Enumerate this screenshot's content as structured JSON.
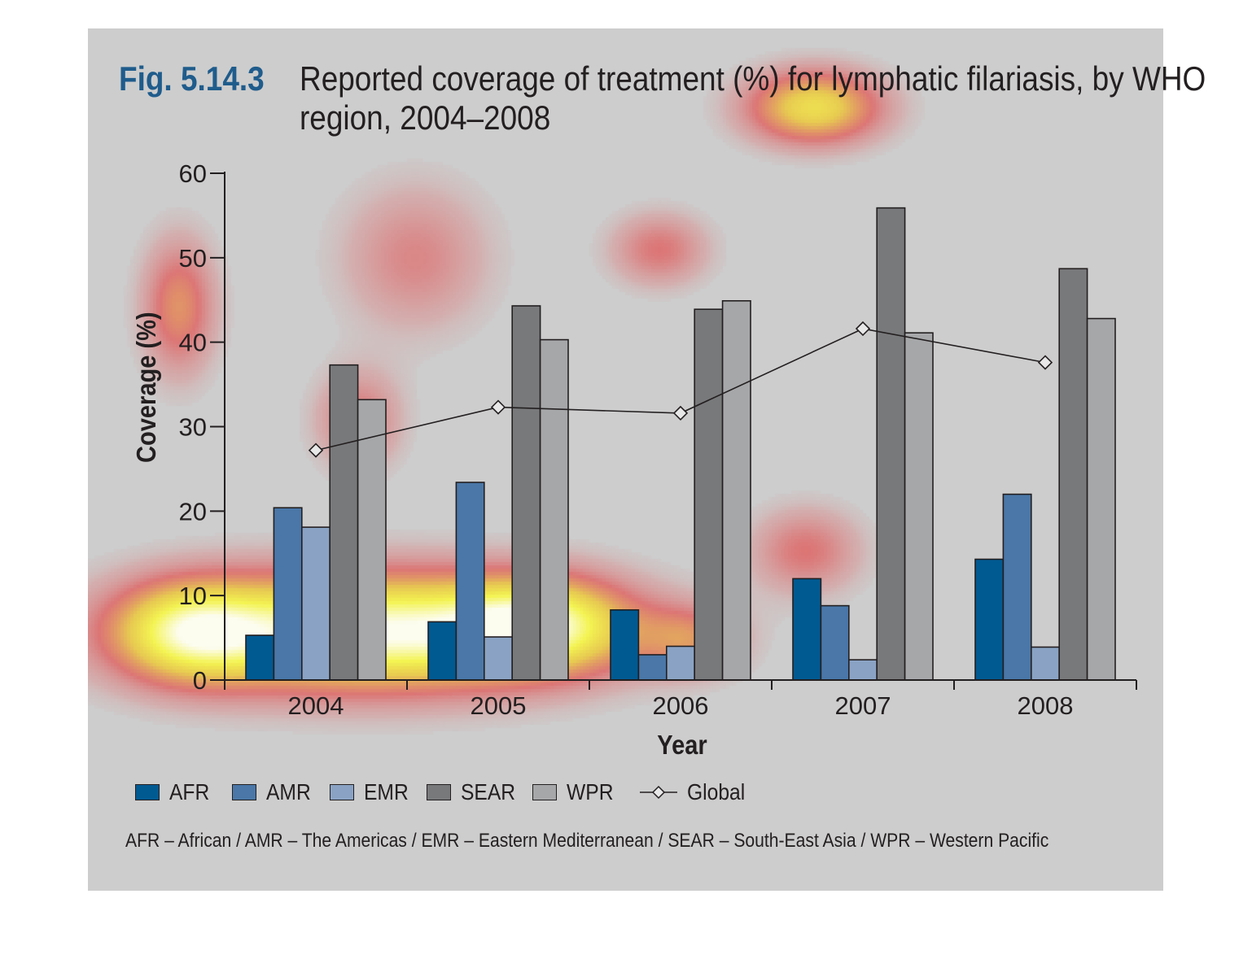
{
  "figure": {
    "number": "Fig. 5.14.3",
    "title": "Reported coverage of treatment (%) for lymphatic filariasis, by WHO region, 2004–2008",
    "footnote": "AFR – African / AMR – The Americas / EMR – Eastern Mediterranean / SEAR – South-East Asia / WPR – Western Pacific"
  },
  "chart_data": {
    "type": "bar",
    "title": "Reported coverage of treatment (%) for lymphatic filariasis, by WHO region, 2004–2008",
    "xlabel": "Year",
    "ylabel": "Coverage (%)",
    "ylim": [
      0,
      60
    ],
    "yticks": [
      0,
      10,
      20,
      30,
      40,
      50,
      60
    ],
    "grid": false,
    "legend_position": "bottom",
    "categories": [
      "2004",
      "2005",
      "2006",
      "2007",
      "2008"
    ],
    "series": [
      {
        "name": "AFR",
        "type": "bar",
        "color": "#005a92",
        "values": [
          5.3,
          6.9,
          8.3,
          12.0,
          14.3
        ]
      },
      {
        "name": "AMR",
        "type": "bar",
        "color": "#4a77a8",
        "values": [
          20.4,
          23.4,
          3.0,
          8.8,
          22.0
        ]
      },
      {
        "name": "EMR",
        "type": "bar",
        "color": "#8aa3c4",
        "values": [
          18.1,
          5.1,
          4.0,
          2.4,
          3.9
        ]
      },
      {
        "name": "SEAR",
        "type": "bar",
        "color": "#78797b",
        "values": [
          37.3,
          44.3,
          43.9,
          55.9,
          48.7
        ]
      },
      {
        "name": "WPR",
        "type": "bar",
        "color": "#a6a7a9",
        "values": [
          33.2,
          40.3,
          44.9,
          41.1,
          42.8
        ]
      },
      {
        "name": "Global",
        "type": "line",
        "marker": "diamond",
        "color": "#231f20",
        "values": [
          27.2,
          32.3,
          31.6,
          41.6,
          37.6
        ]
      }
    ]
  }
}
